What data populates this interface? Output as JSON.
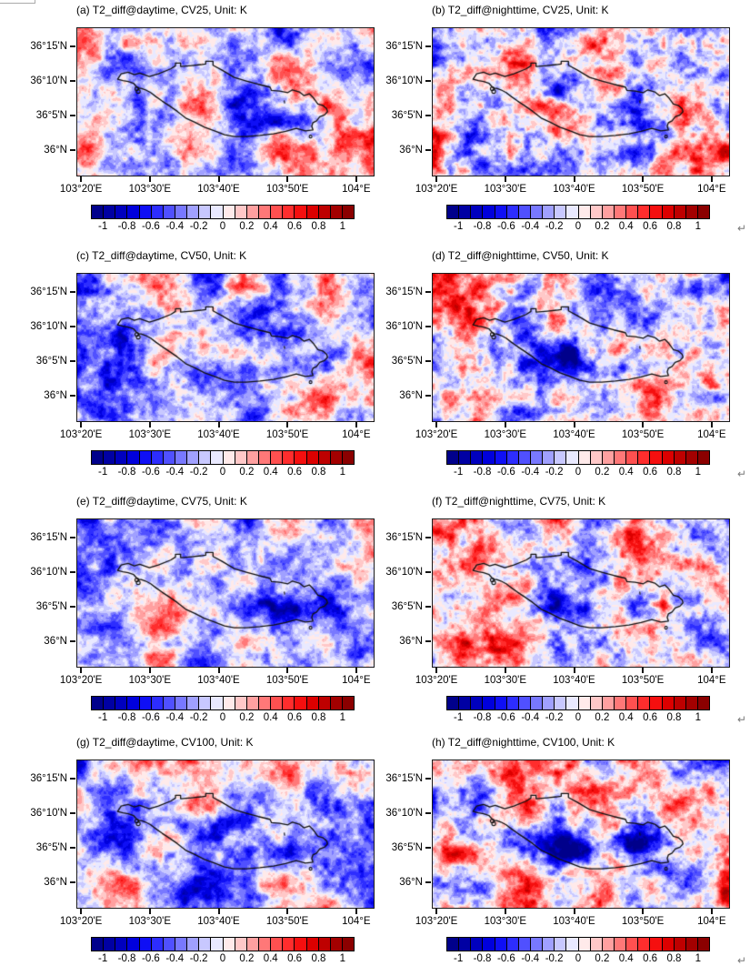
{
  "figure": {
    "background": "#ffffff",
    "return_mark": "↵"
  },
  "chart_data": {
    "type": "heatmap",
    "variable": "T2_diff",
    "unit": "K",
    "description": "Eight-panel filled-contour maps of 2-m temperature difference (Unit: K) over the Lanzhou urban area: daytime (left column) and nighttime (right column) for scenarios CV25, CV50, CV75 and CV100; cooling (blue) concentrated inside the city boundary, stronger at night and for higher CV.",
    "panels": [
      {
        "id": "a",
        "title": "(a) T2_diff@daytime, CV25, Unit: K",
        "time_of_day": "daytime",
        "scenario": "CV25",
        "render": {
          "seed": 101,
          "bias": -0.02,
          "amp": 1.0,
          "anomaly_blobs": [
            [
              103.85,
              36.07,
              0.1,
              0.03,
              -0.55
            ],
            [
              103.7,
              36.12,
              0.05,
              0.025,
              -0.25
            ],
            [
              103.46,
              36.26,
              0.06,
              0.025,
              0.35
            ]
          ]
        }
      },
      {
        "id": "b",
        "title": "(b) T2_diff@nighttime, CV25, Unit: K",
        "time_of_day": "nighttime",
        "scenario": "CV25",
        "render": {
          "seed": 202,
          "bias": 0.03,
          "amp": 1.15,
          "anomaly_blobs": [
            [
              103.645,
              36.135,
              0.055,
              0.038,
              -0.6
            ],
            [
              103.85,
              36.06,
              0.05,
              0.03,
              -0.35
            ],
            [
              103.34,
              36.11,
              0.04,
              0.05,
              0.5
            ]
          ]
        }
      },
      {
        "id": "c",
        "title": "(c) T2_diff@daytime, CV50, Unit: K",
        "time_of_day": "daytime",
        "scenario": "CV50",
        "render": {
          "seed": 303,
          "bias": -0.14,
          "amp": 1.0,
          "anomaly_blobs": [
            [
              103.77,
              36.065,
              0.12,
              0.028,
              -0.5
            ],
            [
              103.47,
              36.16,
              0.09,
              0.05,
              -0.3
            ],
            [
              103.6,
              36.05,
              0.1,
              0.04,
              -0.25
            ]
          ]
        }
      },
      {
        "id": "d",
        "title": "(d) T2_diff@nighttime, CV50, Unit: K",
        "time_of_day": "nighttime",
        "scenario": "CV50",
        "render": {
          "seed": 404,
          "bias": -0.06,
          "amp": 1.1,
          "anomaly_blobs": [
            [
              103.635,
              36.095,
              0.085,
              0.045,
              -0.85
            ],
            [
              103.8,
              36.06,
              0.1,
              0.035,
              -0.45
            ],
            [
              104.02,
              35.99,
              0.05,
              0.03,
              -0.5
            ],
            [
              103.37,
              36.06,
              0.05,
              0.04,
              0.3
            ]
          ]
        }
      },
      {
        "id": "e",
        "title": "(e) T2_diff@daytime, CV75, Unit: K",
        "time_of_day": "daytime",
        "scenario": "CV75",
        "render": {
          "seed": 505,
          "bias": -0.09,
          "amp": 0.95,
          "anomaly_blobs": [
            [
              103.8,
              36.08,
              0.12,
              0.025,
              -0.55
            ],
            [
              103.55,
              36.12,
              0.08,
              0.03,
              -0.2
            ]
          ]
        }
      },
      {
        "id": "f",
        "title": "(f) T2_diff@nighttime, CV75, Unit: K",
        "time_of_day": "nighttime",
        "scenario": "CV75",
        "render": {
          "seed": 606,
          "bias": -0.01,
          "amp": 1.1,
          "anomaly_blobs": [
            [
              103.615,
              36.095,
              0.075,
              0.042,
              -1.0
            ],
            [
              103.75,
              36.08,
              0.09,
              0.03,
              -0.35
            ],
            [
              103.868,
              36.088,
              0.022,
              0.012,
              0.6
            ],
            [
              103.36,
              36.0,
              0.05,
              0.04,
              0.35
            ]
          ]
        }
      },
      {
        "id": "g",
        "title": "(g) T2_diff@daytime, CV100, Unit: K",
        "time_of_day": "daytime",
        "scenario": "CV100",
        "render": {
          "seed": 707,
          "bias": -0.06,
          "amp": 0.95,
          "anomaly_blobs": [
            [
              103.82,
              36.07,
              0.1,
              0.035,
              -0.6
            ],
            [
              103.63,
              36.14,
              0.09,
              0.03,
              -0.4
            ],
            [
              103.64,
              35.97,
              0.08,
              0.03,
              -0.3
            ]
          ]
        }
      },
      {
        "id": "h",
        "title": "(h) T2_diff@nighttime, CV100, Unit: K",
        "time_of_day": "nighttime",
        "scenario": "CV100",
        "render": {
          "seed": 808,
          "bias": 0.0,
          "amp": 1.1,
          "anomaly_blobs": [
            [
              103.66,
              36.08,
              0.08,
              0.04,
              -0.85
            ],
            [
              103.82,
              36.1,
              0.05,
              0.028,
              -0.6
            ],
            [
              103.42,
              36.05,
              0.08,
              0.06,
              0.35
            ],
            [
              104.05,
              35.97,
              0.05,
              0.03,
              0.3
            ]
          ]
        }
      }
    ],
    "x_axis": {
      "tick_labels": [
        "103°20'E",
        "103°30'E",
        "103°40'E",
        "103°50'E",
        "104°E"
      ],
      "tick_lons": [
        103.3333,
        103.5,
        103.6667,
        103.8333,
        104.0
      ],
      "lon_range": [
        103.322,
        104.04
      ]
    },
    "y_axis": {
      "tick_labels": [
        "36°15'N",
        "36°10'N",
        "36°5'N",
        "36°N"
      ],
      "tick_lats": [
        36.25,
        36.1667,
        36.0833,
        36.0
      ],
      "lat_range": [
        35.939,
        36.294
      ]
    },
    "colorbar": {
      "tick_labels": [
        "-1",
        "-0.8",
        "-0.6",
        "-0.4",
        "-0.2",
        "0",
        "0.2",
        "0.4",
        "0.6",
        "0.8",
        "1"
      ],
      "tick_values": [
        -1,
        -0.8,
        -0.6,
        -0.4,
        -0.2,
        0,
        0.2,
        0.4,
        0.6,
        0.8,
        1
      ],
      "cell_min": -1.1,
      "cell_max": 1.1,
      "cell_step": 0.1,
      "colors": [
        "#00008B",
        "#0000A3",
        "#0000BE",
        "#0000DC",
        "#0F0FF5",
        "#2D2DFF",
        "#5050FF",
        "#7878FF",
        "#A0A0FF",
        "#C8C8FF",
        "#E9E9FF",
        "#FFEAEA",
        "#FFC8C8",
        "#FFA0A0",
        "#FF7878",
        "#FF5050",
        "#FF2D2D",
        "#F50F0F",
        "#DC0000",
        "#BE0000",
        "#A30000",
        "#8B0000"
      ]
    },
    "boundary": {
      "name": "city-boundary",
      "polygon_lonlat": [
        [
          103.4196,
          36.1712
        ],
        [
          103.4284,
          36.1843
        ],
        [
          103.4454,
          36.1881
        ],
        [
          103.4601,
          36.1821
        ],
        [
          103.4733,
          36.1858
        ],
        [
          103.4967,
          36.1777
        ],
        [
          103.5187,
          36.1843
        ],
        [
          103.5482,
          36.1959
        ],
        [
          103.5599,
          36.2034
        ],
        [
          103.5599,
          36.21
        ],
        [
          103.5724,
          36.21
        ],
        [
          103.5724,
          36.2019
        ],
        [
          103.5995,
          36.2041
        ],
        [
          103.6215,
          36.2063
        ],
        [
          103.6332,
          36.2078
        ],
        [
          103.6332,
          36.2144
        ],
        [
          103.6508,
          36.2144
        ],
        [
          103.6508,
          36.2048
        ],
        [
          103.6728,
          36.193
        ],
        [
          103.7023,
          36.1755
        ],
        [
          103.7316,
          36.1668
        ],
        [
          103.7609,
          36.1587
        ],
        [
          103.7889,
          36.1521
        ],
        [
          103.7926,
          36.1441
        ],
        [
          103.8124,
          36.1427
        ],
        [
          103.8322,
          36.1389
        ],
        [
          103.8432,
          36.1455
        ],
        [
          103.86,
          36.1405
        ],
        [
          103.871,
          36.1317
        ],
        [
          103.8842,
          36.1361
        ],
        [
          103.8945,
          36.1258
        ],
        [
          103.9049,
          36.1113
        ],
        [
          103.9166,
          36.1082
        ],
        [
          103.9261,
          36.1003
        ],
        [
          103.9283,
          36.0929
        ],
        [
          103.921,
          36.085
        ],
        [
          103.9093,
          36.0806
        ],
        [
          103.9018,
          36.0709
        ],
        [
          103.893,
          36.0665
        ],
        [
          103.8901,
          36.0578
        ],
        [
          103.893,
          36.049
        ],
        [
          103.8747,
          36.0468
        ],
        [
          103.8527,
          36.0527
        ],
        [
          103.8269,
          36.0454
        ],
        [
          103.7977,
          36.0395
        ],
        [
          103.7647,
          36.0358
        ],
        [
          103.7316,
          36.0329
        ],
        [
          103.7023,
          36.0329
        ],
        [
          103.6788,
          36.0373
        ],
        [
          103.6546,
          36.0468
        ],
        [
          103.6303,
          36.0555
        ],
        [
          103.6068,
          36.0674
        ],
        [
          103.5848,
          36.0775
        ],
        [
          103.5643,
          36.0937
        ],
        [
          103.5452,
          36.1069
        ],
        [
          103.5276,
          36.1185
        ],
        [
          103.513,
          36.1288
        ],
        [
          103.4998,
          36.1389
        ],
        [
          103.4873,
          36.1455
        ],
        [
          103.4769,
          36.1493
        ],
        [
          103.469,
          36.1493
        ],
        [
          103.4586,
          36.1609
        ],
        [
          103.4454,
          36.1653
        ],
        [
          103.4328,
          36.1675
        ]
      ],
      "enclave_circles_lonlat": [
        [
          103.4664,
          36.1482
        ],
        [
          103.4697,
          36.1416
        ],
        [
          103.8872,
          36.0329
        ]
      ],
      "dash_segment_lonlat": [
        [
          103.8234,
          36.12
        ],
        [
          103.8245,
          36.113
        ]
      ]
    }
  }
}
